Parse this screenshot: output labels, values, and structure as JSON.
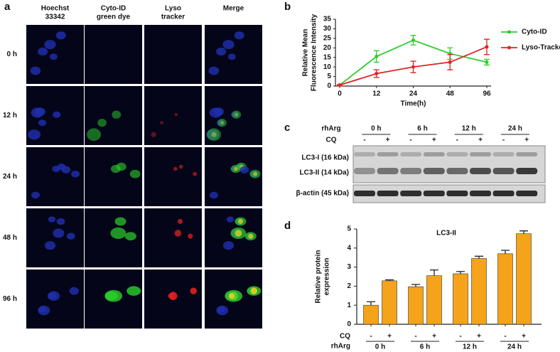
{
  "panel_labels": [
    "a",
    "b",
    "c",
    "d"
  ],
  "microscopy": {
    "column_headers": [
      [
        "Hoechst",
        "33342"
      ],
      [
        "Cyto-ID",
        "green dye"
      ],
      [
        "Lyso",
        "tracker"
      ],
      [
        "Merge"
      ]
    ],
    "row_labels": [
      "0 h",
      "12 h",
      "24 h",
      "48 h",
      "96 h"
    ]
  },
  "blot": {
    "treatment_label": "rhArg",
    "cq_label": "CQ",
    "groups": [
      "0 h",
      "6 h",
      "12 h",
      "24 h"
    ],
    "cq_signs": [
      "-",
      "+",
      "-",
      "+",
      "-",
      "+",
      "-",
      "+"
    ],
    "band_labels": [
      "LC3-I (16 kDa)",
      "LC3-II (14 kDa)",
      "β-actin (45 kDa)"
    ]
  },
  "chart_data": [
    {
      "type": "line",
      "x_label": "Time(h)",
      "y_label": [
        "Relative Mean",
        "Fluorescence Intensity"
      ],
      "categories": [
        "0",
        "12",
        "24",
        "48",
        "96"
      ],
      "series": [
        {
          "name": "Cyto-ID",
          "color": "#2ecc2e",
          "values": [
            0.5,
            15.5,
            24,
            17,
            12.5
          ],
          "errors": [
            0.3,
            3,
            2.5,
            3,
            1.5
          ]
        },
        {
          "name": "Lyso-Tracker",
          "color": "#e02424",
          "values": [
            0.5,
            6.5,
            10,
            12.5,
            20.5
          ],
          "errors": [
            0.3,
            2,
            3,
            4,
            4
          ]
        }
      ],
      "ylim": [
        0,
        35
      ],
      "yticks": [
        0,
        5,
        10,
        15,
        20,
        25,
        30,
        35
      ],
      "legend": "right"
    },
    {
      "type": "bar",
      "title": "LC3-II",
      "y_label": [
        "Relative protein",
        "expression"
      ],
      "categories": [
        "-",
        "+",
        "-",
        "+",
        "-",
        "+",
        "-",
        "+"
      ],
      "row_label": "CQ",
      "group_row_label": "rhArg",
      "groups": [
        "0 h",
        "6 h",
        "12 h",
        "24 h"
      ],
      "color": "#f5a31a",
      "values": [
        1.0,
        2.28,
        1.97,
        2.55,
        2.65,
        3.45,
        3.7,
        4.75
      ],
      "errors": [
        0.18,
        0.05,
        0.12,
        0.3,
        0.12,
        0.12,
        0.18,
        0.15
      ],
      "ylim": [
        0,
        5
      ],
      "yticks": [
        0,
        1,
        2,
        3,
        4,
        5
      ]
    }
  ]
}
